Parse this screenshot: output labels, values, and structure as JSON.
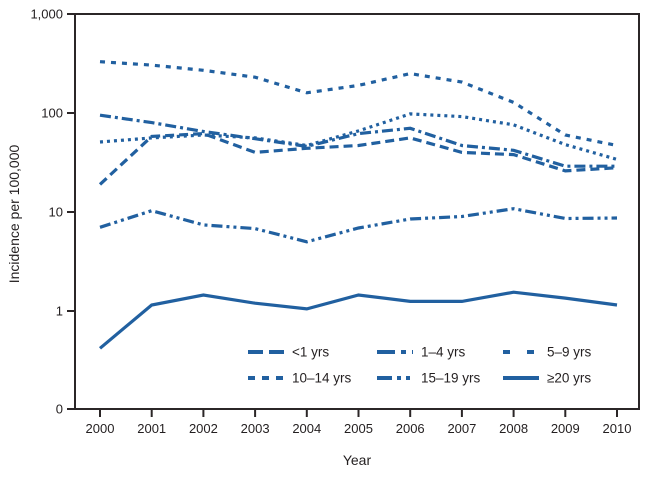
{
  "chart_data": {
    "type": "line",
    "title": "",
    "xlabel": "Year",
    "ylabel": "Incidence per 100,000",
    "y_scale": "log",
    "grid": false,
    "legend_position": "inside-bottom-center",
    "colors": {
      "line": "#2160A0",
      "axis": "#2b2627",
      "text": "#231f20",
      "background": "#ffffff"
    },
    "y_ticks": [
      {
        "label": "1,000",
        "value": 1000
      },
      {
        "label": "100",
        "value": 100
      },
      {
        "label": "10",
        "value": 10
      },
      {
        "label": "1",
        "value": 1
      },
      {
        "label": "0",
        "value": null
      }
    ],
    "x": [
      2000,
      2001,
      2002,
      2003,
      2004,
      2005,
      2006,
      2007,
      2008,
      2009,
      2010
    ],
    "series": [
      {
        "name": "<1 yrs",
        "slug": "lt1-yrs",
        "dash": "9 5",
        "legend_dash": "15 6",
        "values": [
          19,
          58,
          62,
          40,
          44,
          47,
          56,
          40,
          38,
          26,
          28
        ]
      },
      {
        "name": "1–4 yrs",
        "slug": "1-4-yrs",
        "dash": "11 4 3 4",
        "legend_dash": "18 6 5 6",
        "values": [
          95,
          80,
          65,
          55,
          46,
          62,
          70,
          47,
          42,
          29,
          29
        ]
      },
      {
        "name": "5–9 yrs",
        "slug": "5-9-yrs",
        "dash": "5 6",
        "legend_dash": "7 17",
        "values": [
          330,
          305,
          270,
          230,
          160,
          190,
          250,
          205,
          128,
          60,
          47
        ]
      },
      {
        "name": "10–14 yrs",
        "slug": "10-14-yrs",
        "dash": "3 4",
        "legend_dash": "7 7",
        "values": [
          51,
          56,
          60,
          56,
          47,
          66,
          98,
          92,
          76,
          48,
          34
        ]
      },
      {
        "name": "15–19 yrs",
        "slug": "15-19-yrs",
        "dash": "11 4 3 4 3 4",
        "legend_dash": "15 5 4 5 4 5",
        "values": [
          7.0,
          10.3,
          7.4,
          6.8,
          5.0,
          6.9,
          8.5,
          9.0,
          10.8,
          8.6,
          8.7
        ]
      },
      {
        "name": "≥20 yrs",
        "slug": "ge20-yrs",
        "dash": "",
        "legend_dash": "",
        "values": [
          0.42,
          1.15,
          1.45,
          1.2,
          1.05,
          1.45,
          1.25,
          1.25,
          1.55,
          1.35,
          1.15
        ]
      }
    ],
    "legend_rows": [
      [
        "<1 yrs",
        "1–4 yrs",
        "5–9 yrs"
      ],
      [
        "10–14 yrs",
        "15–19 yrs",
        "≥20 yrs"
      ]
    ]
  }
}
